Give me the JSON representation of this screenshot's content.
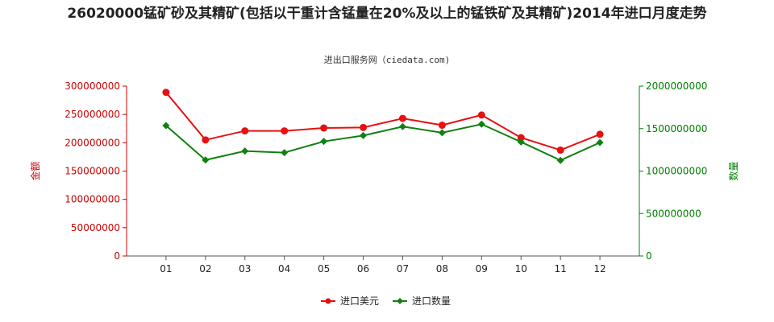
{
  "title": "26020000锰矿砂及其精矿(包括以干重计含锰量在20%及以上的锰铁矿及其精矿)2014年进口月度走势",
  "source": "进出口服务网（ciedata.com)",
  "colors": {
    "series_amount": "#e81010",
    "series_quantity": "#108010",
    "axis_left": "#cc0000",
    "axis_right": "#008000"
  },
  "chart_data": {
    "type": "line",
    "title": "26020000锰矿砂及其精矿(包括以干重计含锰量在20%及以上的锰铁矿及其精矿)2014年进口月度走势",
    "categories": [
      "01",
      "02",
      "03",
      "04",
      "05",
      "06",
      "07",
      "08",
      "09",
      "10",
      "11",
      "12"
    ],
    "y_left": {
      "label": "金额",
      "range": [
        0,
        300000000
      ],
      "ticks": [
        "0",
        "50000000",
        "100000000",
        "150000000",
        "200000000",
        "250000000",
        "300000000"
      ]
    },
    "y_right": {
      "label": "数量",
      "range": [
        0,
        2000000000
      ],
      "ticks": [
        "0",
        "500000000",
        "1000000000",
        "1500000000",
        "2000000000"
      ]
    },
    "series": [
      {
        "name": "进口美元",
        "axis": "left",
        "values": [
          289000000,
          205000000,
          221000000,
          221000000,
          226000000,
          227000000,
          243000000,
          231000000,
          249000000,
          209000000,
          187000000,
          215000000
        ]
      },
      {
        "name": "进口数量",
        "axis": "right",
        "values": [
          1536000000,
          1130000000,
          1236000000,
          1217000000,
          1349000000,
          1418000000,
          1524000000,
          1452000000,
          1552000000,
          1343000000,
          1126000000,
          1336000000
        ]
      }
    ],
    "grid": false,
    "legend": "bottom-center"
  }
}
